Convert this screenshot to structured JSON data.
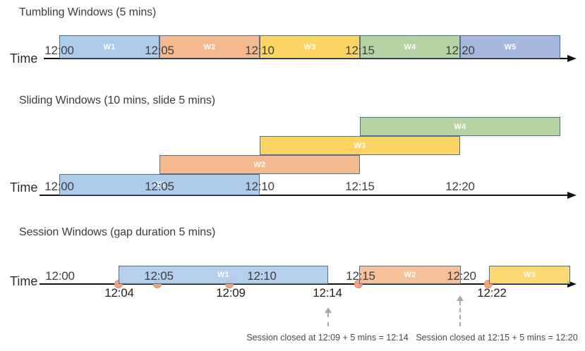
{
  "colors": {
    "window_border": "#4F7090",
    "event_dot": "#F0A482",
    "axis": "#111111",
    "annotation_arrow": "#A9A9A9",
    "blue": "#AECBE9",
    "orange": "#F4B98F",
    "yellow": "#FCD464",
    "green": "#B7D3A3",
    "periwinkle": "#A8B7DE"
  },
  "diagrams": [
    {
      "title": "Tumbling Windows (5 mins)",
      "time_label": "Time",
      "ticks": [
        "12:00",
        "12:05",
        "12:10",
        "12:15",
        "12:20"
      ],
      "windows": [
        {
          "label": "W1",
          "start": "12:00",
          "end": "12:05",
          "color": "#AECBE9"
        },
        {
          "label": "W2",
          "start": "12:05",
          "end": "12:10",
          "color": "#F4B98F"
        },
        {
          "label": "W3",
          "start": "12:10",
          "end": "12:15",
          "color": "#FCD464"
        },
        {
          "label": "W4",
          "start": "12:15",
          "end": "12:20",
          "color": "#B7D3A3"
        },
        {
          "label": "W5",
          "start": "12:20",
          "end": "12:25",
          "color": "#A8B7DE"
        }
      ]
    },
    {
      "title": "Sliding Windows (10 mins, slide 5 mins)",
      "time_label": "Time",
      "ticks": [
        "12:00",
        "12:05",
        "12:10",
        "12:15",
        "12:20"
      ],
      "windows": [
        {
          "label": "W1",
          "start": "12:00",
          "end": "12:10",
          "color": "#AECBE9"
        },
        {
          "label": "W2",
          "start": "12:05",
          "end": "12:15",
          "color": "#F4B98F"
        },
        {
          "label": "W3",
          "start": "12:10",
          "end": "12:20",
          "color": "#FCD464"
        },
        {
          "label": "W4",
          "start": "12:15",
          "end": "12:25",
          "color": "#B7D3A3"
        }
      ]
    },
    {
      "title": "Session Windows (gap duration 5 mins)",
      "time_label": "Time",
      "ticks": [
        "12:00",
        "12:05",
        "12:10",
        "12:15",
        "12:20"
      ],
      "windows": [
        {
          "label": "W1",
          "start": "12:04",
          "end": "12:14",
          "color": "#AECBE9"
        },
        {
          "label": "W2",
          "start": "12:15",
          "end": "12:20",
          "color": "#F4B98F"
        },
        {
          "label": "W3",
          "start": "12:22",
          "end": "12:26",
          "color": "#FCD464"
        }
      ],
      "event_times": [
        "12:04",
        "12:05",
        "12:09",
        "12:15",
        "12:22"
      ],
      "event_labels": [
        "12:04",
        "12:09",
        "12:14",
        "12:22"
      ],
      "annotations": [
        {
          "text": "Session closed at 12:09 + 5 mins = 12:14"
        },
        {
          "text": "Session closed at 12:15 + 5 mins = 12:20"
        }
      ]
    }
  ]
}
